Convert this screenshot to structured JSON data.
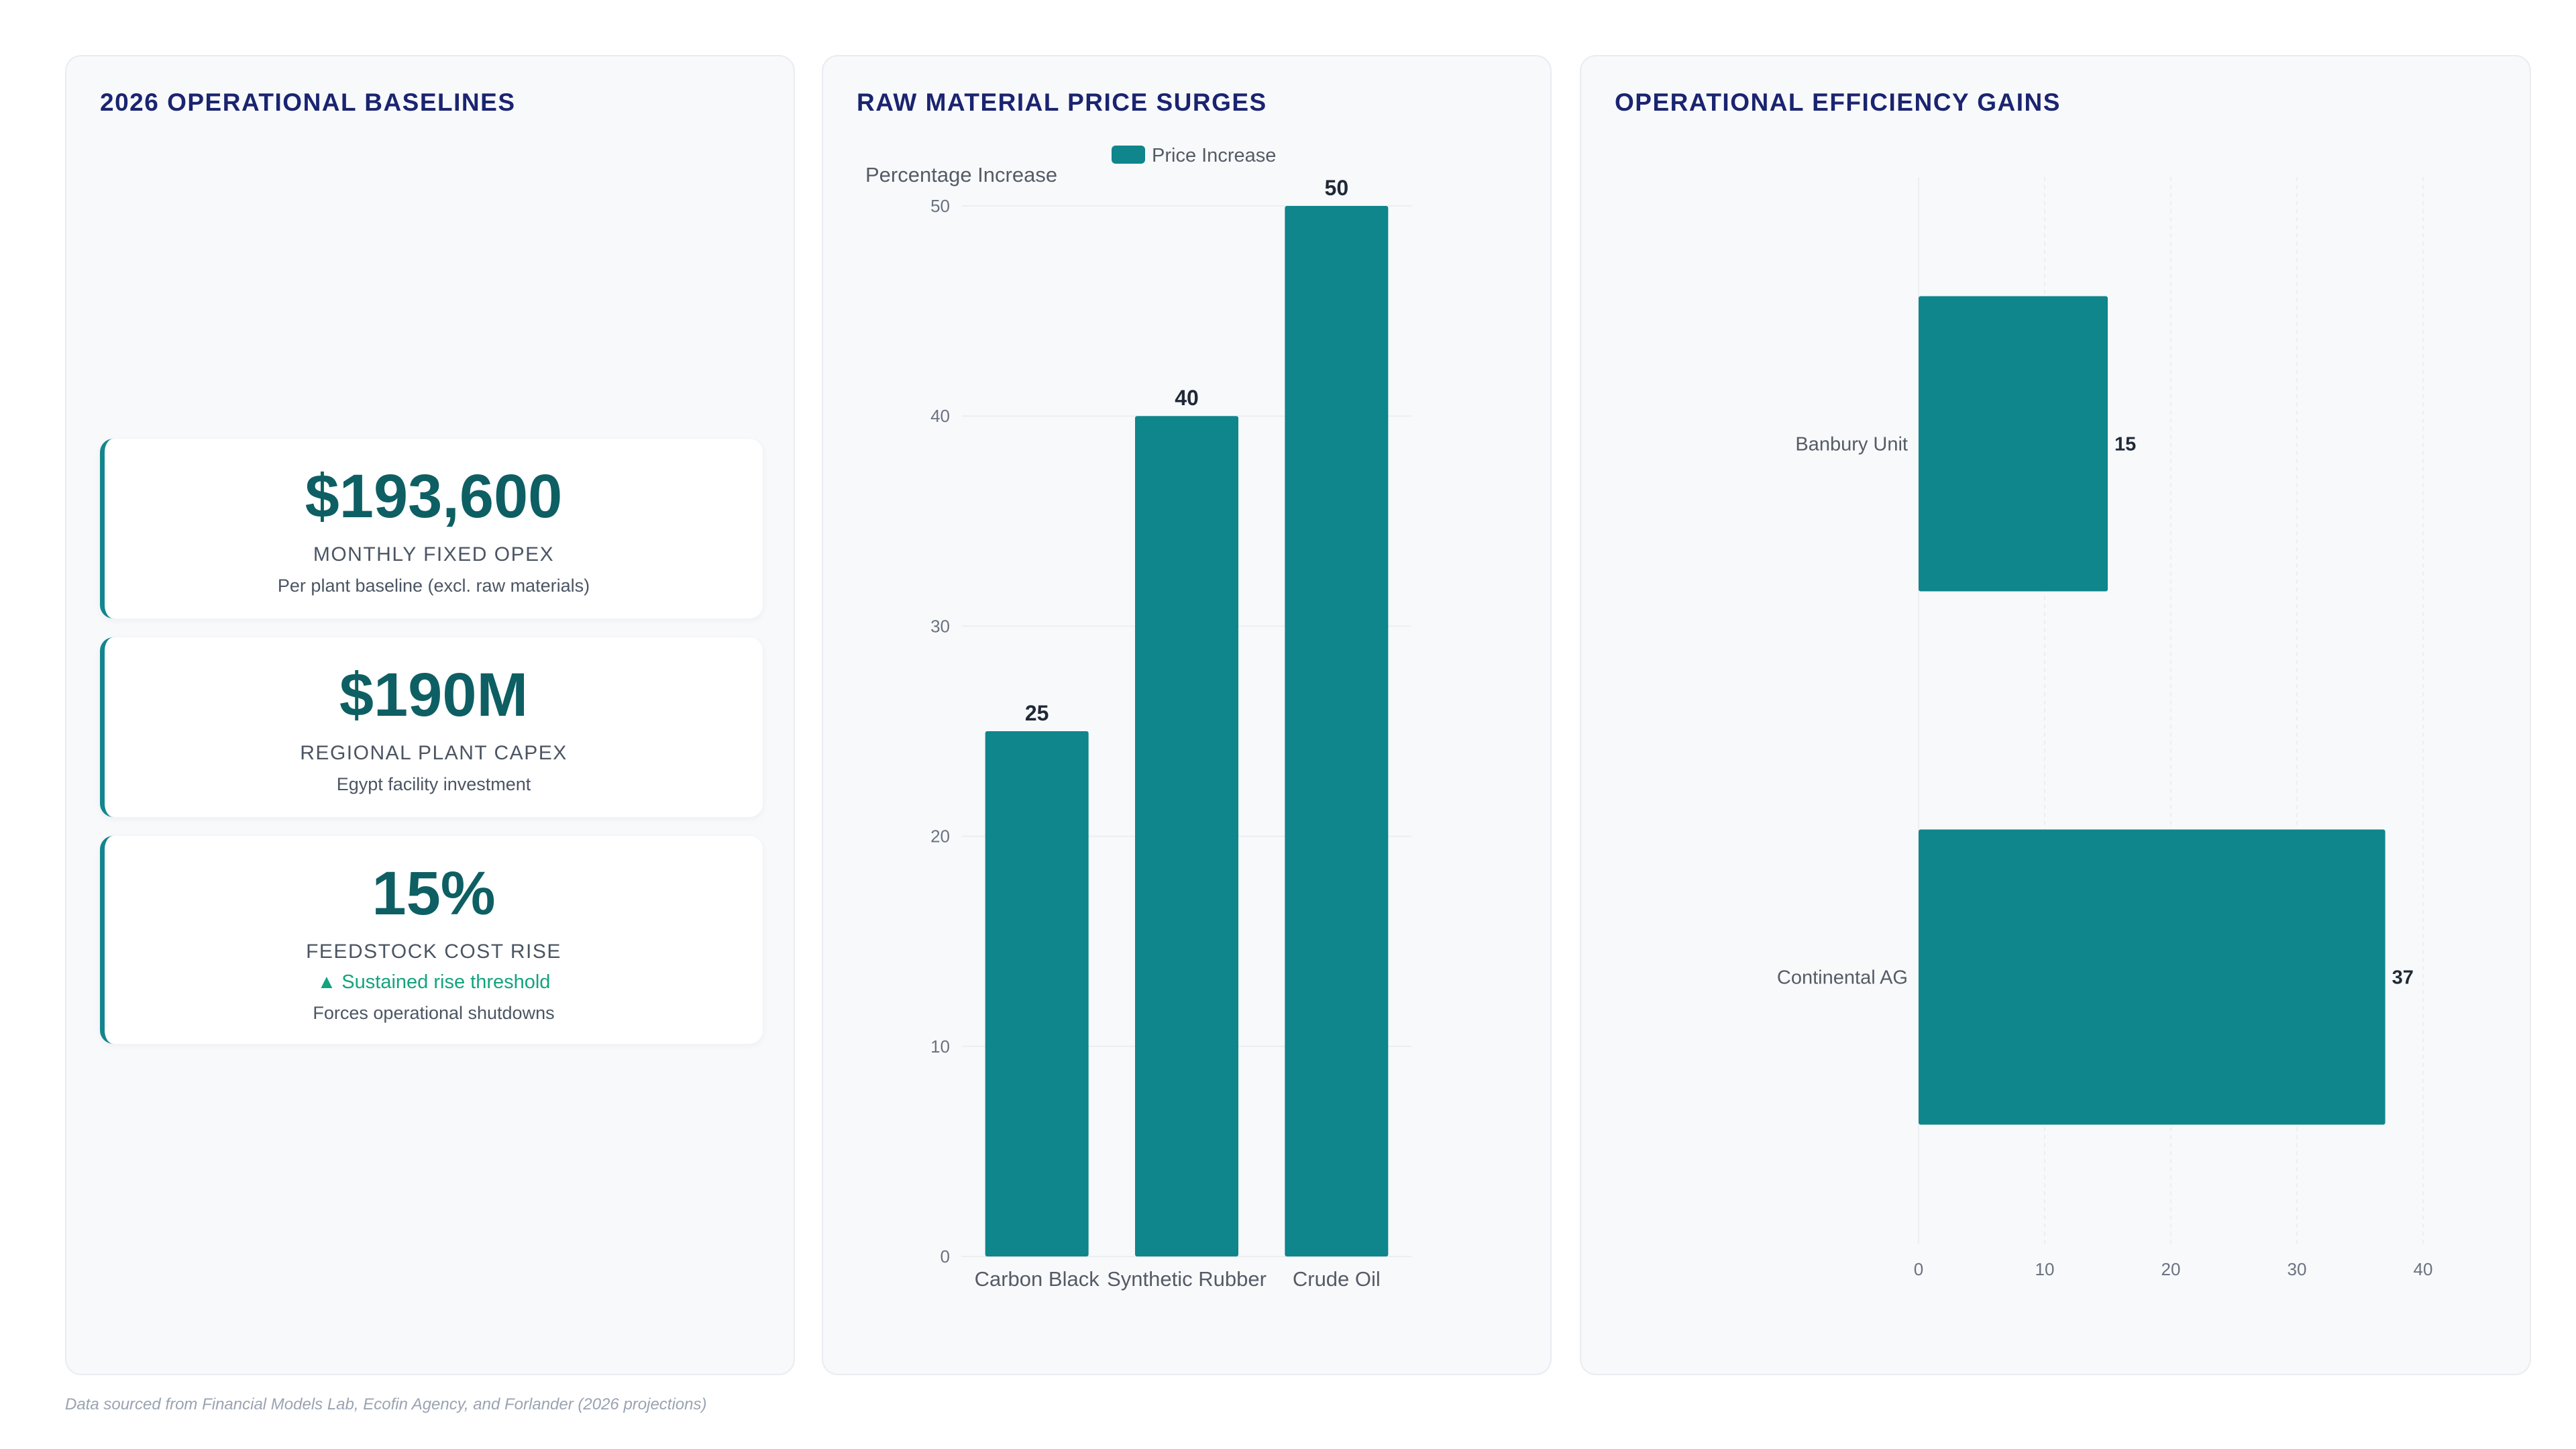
{
  "baselines": {
    "title": "2026 OPERATIONAL BASELINES",
    "kpis": [
      {
        "value": "$193,600",
        "label": "MONTHLY FIXED OPEX",
        "trend": "",
        "sub": "Per plant baseline (excl. raw materials)"
      },
      {
        "value": "$190M",
        "label": "REGIONAL PLANT CAPEX",
        "trend": "",
        "sub": "Egypt facility investment"
      },
      {
        "value": "15%",
        "label": "FEEDSTOCK COST RISE",
        "trend": "▲ Sustained rise threshold",
        "sub": "Forces operational shutdowns"
      }
    ]
  },
  "price_panel": {
    "title": "RAW MATERIAL PRICE SURGES"
  },
  "efficiency_panel": {
    "title": "OPERATIONAL EFFICIENCY GAINS"
  },
  "colors": {
    "accent": "#0f858c",
    "title": "#1a2470",
    "trend": "#12a37f"
  },
  "footer": "Data sourced from Financial Models Lab, Ecofin Agency, and Forlander (2026 projections)",
  "chart_data": [
    {
      "type": "bar",
      "orientation": "vertical",
      "categories": [
        "Carbon Black",
        "Synthetic Rubber",
        "Crude Oil"
      ],
      "series": [
        {
          "name": "Price Increase",
          "values": [
            25,
            40,
            50
          ]
        }
      ],
      "ylabel": "Percentage Increase",
      "ylim": [
        0,
        50
      ],
      "yticks": [
        0,
        10,
        20,
        30,
        40,
        50
      ],
      "legend": "top",
      "grid": true
    },
    {
      "type": "bar",
      "orientation": "horizontal",
      "categories": [
        "Banbury Unit",
        "Continental AG"
      ],
      "series": [
        {
          "values": [
            15,
            37
          ]
        }
      ],
      "xlim": [
        0,
        40
      ],
      "xticks": [
        0,
        10,
        20,
        30,
        40
      ],
      "grid": true
    }
  ]
}
